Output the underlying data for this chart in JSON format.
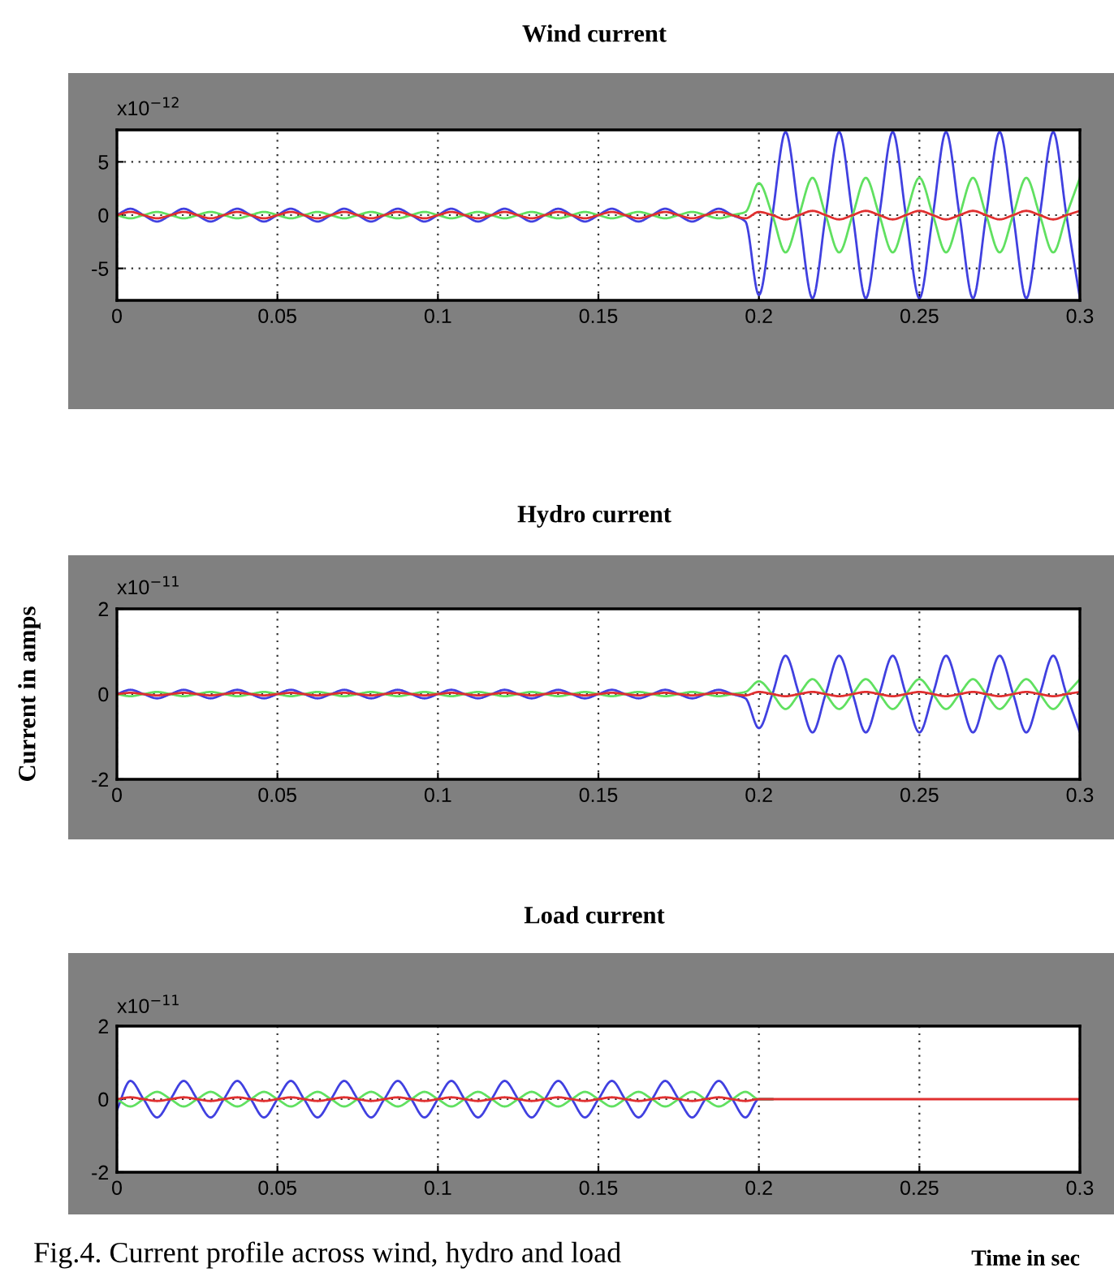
{
  "chart_data": [
    {
      "type": "line",
      "title": "Wind current",
      "annotations": [
        "x10$^{−12}$"
      ],
      "x": [
        0,
        0.0042,
        0.0083,
        0.0125,
        0.0167,
        0.0208,
        0.025,
        0.0292,
        0.0333,
        0.0375,
        0.0417,
        0.0458,
        0.05,
        0.0542,
        0.0583,
        0.0625,
        0.0667,
        0.0708,
        0.075,
        0.0792,
        0.0833,
        0.0875,
        0.0917,
        0.0958,
        0.1,
        0.1042,
        0.1083,
        0.1125,
        0.1167,
        0.1208,
        0.125,
        0.1292,
        0.1333,
        0.1375,
        0.1417,
        0.1458,
        0.15,
        0.1542,
        0.1583,
        0.1625,
        0.1667,
        0.1708,
        0.175,
        0.1792,
        0.1833,
        0.1875,
        0.1917,
        0.1958,
        0.2,
        0.2042,
        0.2083,
        0.2125,
        0.2167,
        0.2208,
        0.225,
        0.2292,
        0.2333,
        0.2375,
        0.2417,
        0.2458,
        0.25,
        0.2542,
        0.2583,
        0.2625,
        0.2667,
        0.2708,
        0.275,
        0.2792,
        0.2833,
        0.2875,
        0.2917,
        0.2958,
        0.3
      ],
      "series": [
        {
          "color": "#4040e0",
          "values": [
            0,
            0.6,
            0,
            -0.6,
            0,
            0.6,
            0,
            -0.6,
            0,
            0.6,
            0,
            -0.6,
            0,
            0.6,
            0,
            -0.6,
            0,
            0.6,
            0,
            -0.6,
            0,
            0.6,
            0,
            -0.6,
            0,
            0.6,
            0,
            -0.6,
            0,
            0.6,
            0,
            -0.6,
            0,
            0.6,
            0,
            -0.6,
            0,
            0.6,
            0,
            -0.6,
            0,
            0.6,
            0,
            -0.6,
            0,
            0.6,
            0,
            -0.6,
            -7.5,
            0,
            7.8,
            0,
            -7.8,
            0,
            7.8,
            0,
            -7.8,
            0,
            7.8,
            0,
            -7.8,
            0,
            7.8,
            0,
            -7.8,
            0,
            7.8,
            0,
            -7.8,
            0,
            7.8,
            0,
            -7.8
          ]
        },
        {
          "color": "#60e060",
          "values": [
            0,
            -0.3,
            0,
            0.3,
            0,
            -0.3,
            0,
            0.3,
            0,
            -0.3,
            0,
            0.3,
            0,
            -0.3,
            0,
            0.3,
            0,
            -0.3,
            0,
            0.3,
            0,
            -0.3,
            0,
            0.3,
            0,
            -0.3,
            0,
            0.3,
            0,
            -0.3,
            0,
            0.3,
            0,
            -0.3,
            0,
            0.3,
            0,
            -0.3,
            0,
            0.3,
            0,
            -0.3,
            0,
            0.3,
            0,
            -0.3,
            0,
            0.3,
            3,
            0,
            -3.5,
            0,
            3.5,
            0,
            -3.5,
            0,
            3.5,
            0,
            -3.5,
            0,
            3.5,
            0,
            -3.5,
            0,
            3.5,
            0,
            -3.5,
            0,
            3.5,
            0,
            -3.5,
            0,
            3.5
          ]
        },
        {
          "color": "#e03030",
          "values": [
            0,
            0.3,
            0,
            -0.3,
            0,
            0.3,
            0,
            -0.3,
            0,
            0.3,
            0,
            -0.3,
            0,
            0.3,
            0,
            -0.3,
            0,
            0.3,
            0,
            -0.3,
            0,
            0.3,
            0,
            -0.3,
            0,
            0.3,
            0,
            -0.3,
            0,
            0.3,
            0,
            -0.3,
            0,
            0.3,
            0,
            -0.3,
            0,
            0.3,
            0,
            -0.3,
            0,
            0.3,
            0,
            -0.3,
            0,
            0.3,
            0,
            -0.3,
            0.3,
            0,
            -0.4,
            0,
            0.4,
            0,
            -0.4,
            0,
            0.4,
            0,
            -0.4,
            0,
            0.4,
            0,
            -0.4,
            0,
            0.4,
            0,
            -0.4,
            0,
            0.4,
            0,
            -0.4,
            0,
            0.4
          ]
        }
      ],
      "xlim": [
        0,
        0.3
      ],
      "xticks": [
        0,
        0.05,
        0.1,
        0.15,
        0.2,
        0.25,
        0.3
      ],
      "ylim": [
        -8,
        8
      ],
      "yticks": [
        -5,
        0,
        5
      ],
      "grid": true,
      "line_style": "solid"
    },
    {
      "type": "line",
      "title": "Hydro current",
      "ylabel": "Current in amps",
      "annotations": [
        "x10$^{−11}$"
      ],
      "x": [
        0,
        0.0042,
        0.0083,
        0.0125,
        0.0167,
        0.0208,
        0.025,
        0.0292,
        0.0333,
        0.0375,
        0.0417,
        0.0458,
        0.05,
        0.0542,
        0.0583,
        0.0625,
        0.0667,
        0.0708,
        0.075,
        0.0792,
        0.0833,
        0.0875,
        0.0917,
        0.0958,
        0.1,
        0.1042,
        0.1083,
        0.1125,
        0.1167,
        0.1208,
        0.125,
        0.1292,
        0.1333,
        0.1375,
        0.1417,
        0.1458,
        0.15,
        0.1542,
        0.1583,
        0.1625,
        0.1667,
        0.1708,
        0.175,
        0.1792,
        0.1833,
        0.1875,
        0.1917,
        0.1958,
        0.2,
        0.2042,
        0.2083,
        0.2125,
        0.2167,
        0.2208,
        0.225,
        0.2292,
        0.2333,
        0.2375,
        0.2417,
        0.2458,
        0.25,
        0.2542,
        0.2583,
        0.2625,
        0.2667,
        0.2708,
        0.275,
        0.2792,
        0.2833,
        0.2875,
        0.2917,
        0.2958,
        0.3
      ],
      "series": [
        {
          "color": "#4040e0",
          "values": [
            0,
            0.1,
            0,
            -0.1,
            0,
            0.1,
            0,
            -0.1,
            0,
            0.1,
            0,
            -0.1,
            0,
            0.1,
            0,
            -0.1,
            0,
            0.1,
            0,
            -0.1,
            0,
            0.1,
            0,
            -0.1,
            0,
            0.1,
            0,
            -0.1,
            0,
            0.1,
            0,
            -0.1,
            0,
            0.1,
            0,
            -0.1,
            0,
            0.1,
            0,
            -0.1,
            0,
            0.1,
            0,
            -0.1,
            0,
            0.1,
            0,
            -0.1,
            -0.8,
            0,
            0.9,
            0,
            -0.9,
            0,
            0.9,
            0,
            -0.9,
            0,
            0.9,
            0,
            -0.9,
            0,
            0.9,
            0,
            -0.9,
            0,
            0.9,
            0,
            -0.9,
            0,
            0.9,
            0,
            -0.9
          ]
        },
        {
          "color": "#60e060",
          "values": [
            0,
            -0.05,
            0,
            0.05,
            0,
            -0.05,
            0,
            0.05,
            0,
            -0.05,
            0,
            0.05,
            0,
            -0.05,
            0,
            0.05,
            0,
            -0.05,
            0,
            0.05,
            0,
            -0.05,
            0,
            0.05,
            0,
            -0.05,
            0,
            0.05,
            0,
            -0.05,
            0,
            0.05,
            0,
            -0.05,
            0,
            0.05,
            0,
            -0.05,
            0,
            0.05,
            0,
            -0.05,
            0,
            0.05,
            0,
            -0.05,
            0,
            0.05,
            0.3,
            0,
            -0.35,
            0,
            0.35,
            0,
            -0.35,
            0,
            0.35,
            0,
            -0.35,
            0,
            0.35,
            0,
            -0.35,
            0,
            0.35,
            0,
            -0.35,
            0,
            0.35,
            0,
            -0.35,
            0,
            0.35
          ]
        },
        {
          "color": "#e03030",
          "values": [
            0,
            0.03,
            0,
            -0.03,
            0,
            0.03,
            0,
            -0.03,
            0,
            0.03,
            0,
            -0.03,
            0,
            0.03,
            0,
            -0.03,
            0,
            0.03,
            0,
            -0.03,
            0,
            0.03,
            0,
            -0.03,
            0,
            0.03,
            0,
            -0.03,
            0,
            0.03,
            0,
            -0.03,
            0,
            0.03,
            0,
            -0.03,
            0,
            0.03,
            0,
            -0.03,
            0,
            0.03,
            0,
            -0.03,
            0,
            0.03,
            0,
            -0.03,
            0.05,
            0,
            -0.05,
            0,
            0.05,
            0,
            -0.05,
            0,
            0.05,
            0,
            -0.05,
            0,
            0.05,
            0,
            -0.05,
            0,
            0.05,
            0,
            -0.05,
            0,
            0.05,
            0,
            -0.05,
            0,
            0.05
          ]
        }
      ],
      "xlim": [
        0,
        0.3
      ],
      "xticks": [
        0,
        0.05,
        0.1,
        0.15,
        0.2,
        0.25,
        0.3
      ],
      "ylim": [
        -2,
        2
      ],
      "yticks": [
        -2,
        0,
        2
      ],
      "grid": true,
      "line_style": "solid"
    },
    {
      "type": "line",
      "title": "Load current",
      "xlabel": "Time in sec",
      "annotations": [
        "x10$^{−11}$",
        "Fig.4. Current profile across wind, hydro and load"
      ],
      "x": [
        0,
        0.0042,
        0.0083,
        0.0125,
        0.0167,
        0.0208,
        0.025,
        0.0292,
        0.0333,
        0.0375,
        0.0417,
        0.0458,
        0.05,
        0.0542,
        0.0583,
        0.0625,
        0.0667,
        0.0708,
        0.075,
        0.0792,
        0.0833,
        0.0875,
        0.0917,
        0.0958,
        0.1,
        0.1042,
        0.1083,
        0.1125,
        0.1167,
        0.1208,
        0.125,
        0.1292,
        0.1333,
        0.1375,
        0.1417,
        0.1458,
        0.15,
        0.1542,
        0.1583,
        0.1625,
        0.1667,
        0.1708,
        0.175,
        0.1792,
        0.1833,
        0.1875,
        0.1917,
        0.1958,
        0.2,
        0.2042,
        0.2083,
        0.2125,
        0.2167,
        0.2208,
        0.225,
        0.2292,
        0.2333,
        0.2375,
        0.2417,
        0.2458,
        0.25,
        0.2542,
        0.2583,
        0.2625,
        0.2667,
        0.2708,
        0.275,
        0.2792,
        0.2833,
        0.2875,
        0.2917,
        0.2958,
        0.3
      ],
      "series": [
        {
          "color": "#4040e0",
          "values": [
            -0.3,
            0.5,
            0,
            -0.5,
            0,
            0.5,
            0,
            -0.5,
            0,
            0.5,
            0,
            -0.5,
            0,
            0.5,
            0,
            -0.5,
            0,
            0.5,
            0,
            -0.5,
            0,
            0.5,
            0,
            -0.5,
            0,
            0.5,
            0,
            -0.5,
            0,
            0.5,
            0,
            -0.5,
            0,
            0.5,
            0,
            -0.5,
            0,
            0.5,
            0,
            -0.5,
            0,
            0.5,
            0,
            -0.5,
            0,
            0.5,
            0,
            -0.5,
            0,
            0,
            null,
            null,
            null,
            null,
            null,
            null,
            null,
            null,
            null,
            null,
            null,
            null,
            null,
            null,
            null,
            null,
            null,
            null,
            null,
            null,
            null,
            null,
            null
          ]
        },
        {
          "color": "#60e060",
          "values": [
            0,
            -0.2,
            0,
            0.2,
            0,
            -0.2,
            0,
            0.2,
            0,
            -0.2,
            0,
            0.2,
            0,
            -0.2,
            0,
            0.2,
            0,
            -0.2,
            0,
            0.2,
            0,
            -0.2,
            0,
            0.2,
            0,
            -0.2,
            0,
            0.2,
            0,
            -0.2,
            0,
            0.2,
            0,
            -0.2,
            0,
            0.2,
            0,
            -0.2,
            0,
            0.2,
            0,
            -0.2,
            0,
            0.2,
            0,
            -0.2,
            0,
            0.2,
            0,
            0,
            null,
            null,
            null,
            null,
            null,
            null,
            null,
            null,
            null,
            null,
            null,
            null,
            null,
            null,
            null,
            null,
            null,
            null,
            null,
            null,
            null,
            null,
            null
          ]
        },
        {
          "color": "#e03030",
          "values": [
            0,
            0.05,
            0,
            -0.05,
            0,
            0.05,
            0,
            -0.05,
            0,
            0.05,
            0,
            -0.05,
            0,
            0.05,
            0,
            -0.05,
            0,
            0.05,
            0,
            -0.05,
            0,
            0.05,
            0,
            -0.05,
            0,
            0.05,
            0,
            -0.05,
            0,
            0.05,
            0,
            -0.05,
            0,
            0.05,
            0,
            -0.05,
            0,
            0.05,
            0,
            -0.05,
            0,
            0.05,
            0,
            -0.05,
            0,
            0.05,
            0,
            -0.05,
            0,
            0,
            0,
            0,
            0,
            0,
            0,
            0,
            0,
            0,
            0,
            0,
            0,
            0,
            0,
            0,
            0,
            0,
            0,
            0,
            0,
            0,
            0,
            0,
            0
          ]
        }
      ],
      "xlim": [
        0,
        0.3
      ],
      "xticks": [
        0,
        0.05,
        0.1,
        0.15,
        0.2,
        0.25,
        0.3
      ],
      "ylim": [
        -2,
        2
      ],
      "yticks": [
        -2,
        0,
        2
      ],
      "grid": true,
      "line_style": "solid"
    }
  ]
}
